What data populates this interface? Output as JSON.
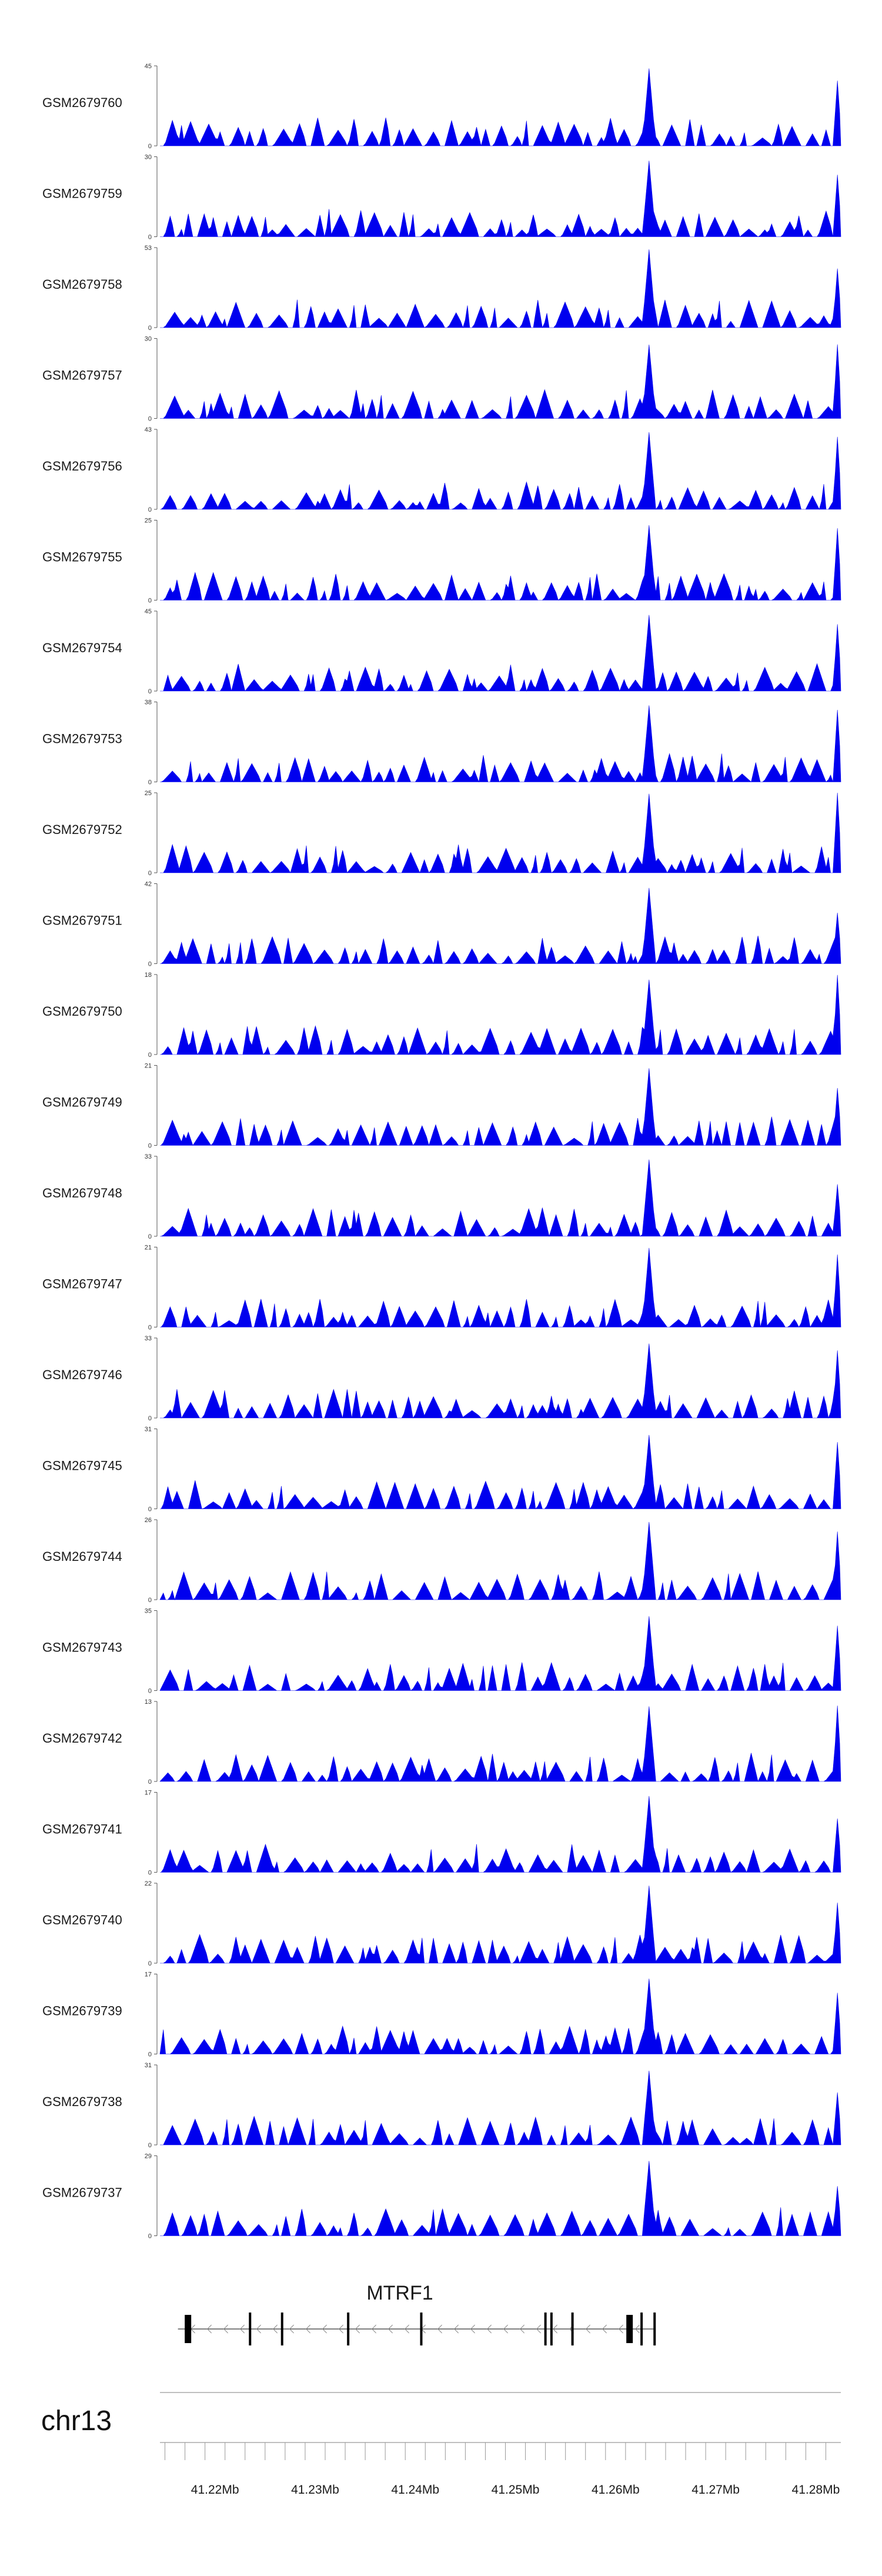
{
  "chart_data": {
    "type": "area",
    "title": "",
    "chromosome": "chr13",
    "gene": {
      "name": "MTRF1",
      "strand": "-",
      "exons_kb_offset": [
        1.0,
        7.2,
        10.4,
        17.0,
        24.3,
        36.7,
        37.3,
        39.4,
        45.1,
        46.3,
        47.6
      ]
    },
    "xlim_mb": [
      41.2145,
      41.2825
    ],
    "x_ticks": [
      "41.22Mb",
      "41.23Mb",
      "41.24Mb",
      "41.25Mb",
      "41.26Mb",
      "41.27Mb",
      "41.28Mb"
    ],
    "x_tick_values": [
      41.22,
      41.23,
      41.24,
      41.25,
      41.26,
      41.27,
      41.28
    ],
    "color": "#0000ee",
    "tracks": [
      {
        "name": "GSM2679760",
        "ymax": 45,
        "seed": 11
      },
      {
        "name": "GSM2679759",
        "ymax": 30,
        "seed": 23
      },
      {
        "name": "GSM2679758",
        "ymax": 53,
        "seed": 37
      },
      {
        "name": "GSM2679757",
        "ymax": 30,
        "seed": 41
      },
      {
        "name": "GSM2679756",
        "ymax": 43,
        "seed": 53
      },
      {
        "name": "GSM2679755",
        "ymax": 25,
        "seed": 67
      },
      {
        "name": "GSM2679754",
        "ymax": 45,
        "seed": 71
      },
      {
        "name": "GSM2679753",
        "ymax": 38,
        "seed": 83
      },
      {
        "name": "GSM2679752",
        "ymax": 25,
        "seed": 97
      },
      {
        "name": "GSM2679751",
        "ymax": 42,
        "seed": 101
      },
      {
        "name": "GSM2679750",
        "ymax": 18,
        "seed": 113
      },
      {
        "name": "GSM2679749",
        "ymax": 21,
        "seed": 127
      },
      {
        "name": "GSM2679748",
        "ymax": 33,
        "seed": 131
      },
      {
        "name": "GSM2679747",
        "ymax": 21,
        "seed": 139
      },
      {
        "name": "GSM2679746",
        "ymax": 33,
        "seed": 149
      },
      {
        "name": "GSM2679745",
        "ymax": 31,
        "seed": 157
      },
      {
        "name": "GSM2679744",
        "ymax": 26,
        "seed": 163
      },
      {
        "name": "GSM2679743",
        "ymax": 35,
        "seed": 173
      },
      {
        "name": "GSM2679742",
        "ymax": 13,
        "seed": 181
      },
      {
        "name": "GSM2679741",
        "ymax": 17,
        "seed": 191
      },
      {
        "name": "GSM2679740",
        "ymax": 22,
        "seed": 197
      },
      {
        "name": "GSM2679739",
        "ymax": 17,
        "seed": 211
      },
      {
        "name": "GSM2679738",
        "ymax": 31,
        "seed": 223
      },
      {
        "name": "GSM2679737",
        "ymax": 29,
        "seed": 227
      }
    ]
  }
}
